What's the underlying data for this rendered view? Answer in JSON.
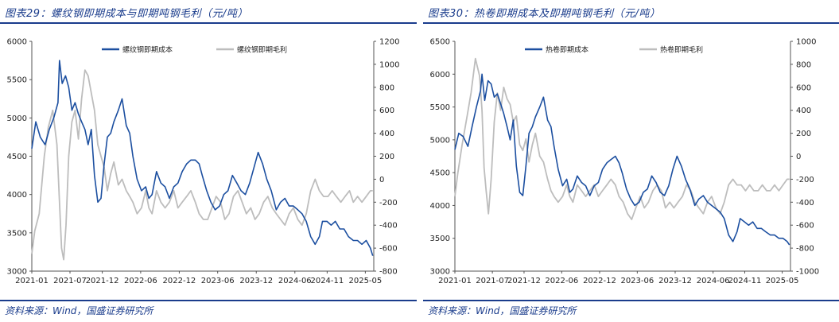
{
  "charts": [
    {
      "figure_title": "图表29：螺纹钢即期成本与即期吨钢毛利（元/吨）",
      "source": "资料来源：Wind，国盛证券研究所",
      "chart_data": {
        "type": "line",
        "x_ticks": [
          "2021-01",
          "2021-07",
          "2021-12",
          "2022-06",
          "2022-12",
          "2023-06",
          "2023-12",
          "2024-06",
          "2024-11",
          "2025-05"
        ],
        "x_range": [
          "2021-01-01",
          "2025-06-10"
        ],
        "left_axis": {
          "ylim": [
            3000,
            6000
          ],
          "ticks": [
            3000,
            3500,
            4000,
            4500,
            5000,
            5500,
            6000
          ]
        },
        "right_axis": {
          "ylim": [
            -800,
            1200
          ],
          "ticks": [
            -800,
            -600,
            -400,
            -200,
            0,
            200,
            400,
            600,
            800,
            1000,
            1200
          ]
        },
        "legend_position": "top",
        "series": [
          {
            "name": "螺纹钢即期成本",
            "axis": "left",
            "color": "#1c4fa0",
            "x": [
              "2021-01-01",
              "2021-01-20",
              "2021-02-10",
              "2021-03-05",
              "2021-03-25",
              "2021-04-15",
              "2021-05-05",
              "2021-05-12",
              "2021-05-25",
              "2021-06-10",
              "2021-06-25",
              "2021-07-10",
              "2021-07-25",
              "2021-08-10",
              "2021-08-25",
              "2021-09-10",
              "2021-09-25",
              "2021-10-10",
              "2021-10-25",
              "2021-11-10",
              "2021-11-25",
              "2021-12-10",
              "2021-12-25",
              "2022-01-10",
              "2022-01-25",
              "2022-02-15",
              "2022-03-05",
              "2022-03-25",
              "2022-04-10",
              "2022-04-25",
              "2022-05-15",
              "2022-06-05",
              "2022-06-25",
              "2022-07-10",
              "2022-07-25",
              "2022-08-15",
              "2022-09-05",
              "2022-09-25",
              "2022-10-15",
              "2022-11-05",
              "2022-11-25",
              "2022-12-15",
              "2023-01-05",
              "2023-01-25",
              "2023-02-15",
              "2023-03-05",
              "2023-03-20",
              "2023-04-10",
              "2023-04-30",
              "2023-05-20",
              "2023-06-10",
              "2023-06-30",
              "2023-07-20",
              "2023-08-10",
              "2023-08-31",
              "2023-09-20",
              "2023-10-10",
              "2023-10-31",
              "2023-11-20",
              "2023-12-10",
              "2023-12-31",
              "2024-01-20",
              "2024-02-10",
              "2024-03-05",
              "2024-03-25",
              "2024-04-15",
              "2024-05-05",
              "2024-05-25",
              "2024-06-15",
              "2024-07-05",
              "2024-07-25",
              "2024-08-15",
              "2024-09-05",
              "2024-09-25",
              "2024-10-10",
              "2024-10-31",
              "2024-11-20",
              "2024-12-10",
              "2024-12-31",
              "2025-01-20",
              "2025-02-10",
              "2025-03-05",
              "2025-03-25",
              "2025-04-15",
              "2025-05-05",
              "2025-05-25",
              "2025-06-05"
            ],
            "y": [
              4600,
              4950,
              4750,
              4650,
              4850,
              5000,
              5200,
              5750,
              5450,
              5550,
              5400,
              5100,
              5200,
              5050,
              4950,
              4850,
              4650,
              4850,
              4250,
              3900,
              3950,
              4400,
              4750,
              4800,
              4950,
              5100,
              5250,
              4900,
              4800,
              4500,
              4200,
              4050,
              4100,
              3950,
              4000,
              4300,
              4150,
              4100,
              3950,
              4100,
              4150,
              4300,
              4400,
              4450,
              4450,
              4400,
              4250,
              4050,
              3900,
              3800,
              3850,
              4000,
              4050,
              4250,
              4150,
              4050,
              4000,
              4150,
              4350,
              4550,
              4400,
              4200,
              4050,
              3800,
              3900,
              3950,
              3850,
              3850,
              3800,
              3750,
              3650,
              3450,
              3350,
              3450,
              3650,
              3650,
              3600,
              3650,
              3550,
              3550,
              3450,
              3400,
              3400,
              3350,
              3400,
              3300,
              3200
            ]
          },
          {
            "name": "螺纹钢即期毛利",
            "axis": "right",
            "color": "#bdbdbd",
            "x": [
              "2021-01-01",
              "2021-01-15",
              "2021-02-05",
              "2021-03-01",
              "2021-03-20",
              "2021-04-10",
              "2021-04-30",
              "2021-05-12",
              "2021-05-22",
              "2021-06-01",
              "2021-06-12",
              "2021-06-25",
              "2021-07-10",
              "2021-07-25",
              "2021-08-10",
              "2021-08-25",
              "2021-09-10",
              "2021-09-25",
              "2021-10-10",
              "2021-10-25",
              "2021-11-10",
              "2021-11-25",
              "2021-12-10",
              "2021-12-25",
              "2022-01-10",
              "2022-01-25",
              "2022-02-15",
              "2022-03-05",
              "2022-03-25",
              "2022-04-10",
              "2022-04-25",
              "2022-05-15",
              "2022-06-05",
              "2022-06-25",
              "2022-07-10",
              "2022-07-25",
              "2022-08-15",
              "2022-09-05",
              "2022-09-25",
              "2022-10-15",
              "2022-11-05",
              "2022-11-25",
              "2022-12-15",
              "2023-01-05",
              "2023-01-25",
              "2023-02-15",
              "2023-03-05",
              "2023-03-25",
              "2023-04-15",
              "2023-05-05",
              "2023-05-25",
              "2023-06-15",
              "2023-07-05",
              "2023-07-25",
              "2023-08-15",
              "2023-09-05",
              "2023-09-25",
              "2023-10-15",
              "2023-11-05",
              "2023-11-25",
              "2023-12-15",
              "2024-01-05",
              "2024-01-25",
              "2024-02-15",
              "2024-03-05",
              "2024-03-25",
              "2024-04-15",
              "2024-05-05",
              "2024-05-25",
              "2024-06-15",
              "2024-07-05",
              "2024-07-25",
              "2024-08-15",
              "2024-09-05",
              "2024-09-25",
              "2024-10-15",
              "2024-11-05",
              "2024-11-25",
              "2024-12-15",
              "2025-01-05",
              "2025-01-25",
              "2025-02-15",
              "2025-03-05",
              "2025-03-25",
              "2025-04-15",
              "2025-05-05",
              "2025-05-25",
              "2025-06-05"
            ],
            "y": [
              -650,
              -450,
              -300,
              200,
              450,
              600,
              300,
              -200,
              -600,
              -700,
              -400,
              200,
              500,
              600,
              350,
              700,
              950,
              900,
              750,
              600,
              300,
              200,
              100,
              -100,
              50,
              150,
              -50,
              0,
              -100,
              -150,
              -200,
              -300,
              -250,
              -100,
              -250,
              -300,
              -100,
              -200,
              -250,
              -200,
              -100,
              -250,
              -200,
              -150,
              -100,
              -200,
              -300,
              -350,
              -350,
              -250,
              -150,
              -200,
              -350,
              -300,
              -150,
              -100,
              -200,
              -300,
              -250,
              -350,
              -300,
              -200,
              -150,
              -250,
              -300,
              -350,
              -400,
              -300,
              -250,
              -350,
              -400,
              -300,
              -100,
              0,
              -100,
              -150,
              -150,
              -100,
              -150,
              -200,
              -150,
              -100,
              -200,
              -150,
              -200,
              -150,
              -100,
              -100
            ]
          }
        ]
      }
    },
    {
      "figure_title": "图表30：热卷即期成本及即期吨钢毛利（元/吨）",
      "source": "资料来源：Wind，国盛证券研究所",
      "chart_data": {
        "type": "line",
        "x_ticks": [
          "2021-01",
          "2021-07",
          "2021-12",
          "2022-06",
          "2022-12",
          "2023-06",
          "2023-12",
          "2024-06",
          "2024-11",
          "2025-05"
        ],
        "x_range": [
          "2021-01-01",
          "2025-06-10"
        ],
        "left_axis": {
          "ylim": [
            3000,
            6500
          ],
          "ticks": [
            3000,
            3500,
            4000,
            4500,
            5000,
            5500,
            6000,
            6500
          ]
        },
        "right_axis": {
          "ylim": [
            -1000,
            1000
          ],
          "ticks": [
            -1000,
            -800,
            -600,
            -400,
            -200,
            0,
            200,
            400,
            600,
            800,
            1000
          ]
        },
        "legend_position": "top",
        "series": [
          {
            "name": "热卷即期成本",
            "axis": "left",
            "color": "#1c4fa0",
            "x": [
              "2021-01-01",
              "2021-01-20",
              "2021-02-10",
              "2021-03-05",
              "2021-03-25",
              "2021-04-15",
              "2021-05-05",
              "2021-05-12",
              "2021-05-25",
              "2021-06-10",
              "2021-06-25",
              "2021-07-10",
              "2021-07-25",
              "2021-08-10",
              "2021-08-25",
              "2021-09-10",
              "2021-09-25",
              "2021-10-10",
              "2021-10-25",
              "2021-11-10",
              "2021-11-25",
              "2021-12-10",
              "2021-12-25",
              "2022-01-10",
              "2022-01-25",
              "2022-02-15",
              "2022-03-05",
              "2022-03-25",
              "2022-04-10",
              "2022-04-25",
              "2022-05-15",
              "2022-06-05",
              "2022-06-25",
              "2022-07-10",
              "2022-07-25",
              "2022-08-15",
              "2022-09-05",
              "2022-09-25",
              "2022-10-15",
              "2022-11-05",
              "2022-11-25",
              "2022-12-15",
              "2023-01-05",
              "2023-01-25",
              "2023-02-15",
              "2023-03-05",
              "2023-03-20",
              "2023-04-10",
              "2023-04-30",
              "2023-05-20",
              "2023-06-10",
              "2023-06-30",
              "2023-07-20",
              "2023-08-10",
              "2023-08-31",
              "2023-09-20",
              "2023-10-10",
              "2023-10-31",
              "2023-11-20",
              "2023-12-10",
              "2023-12-31",
              "2024-01-20",
              "2024-02-10",
              "2024-03-05",
              "2024-03-25",
              "2024-04-15",
              "2024-05-05",
              "2024-05-25",
              "2024-06-15",
              "2024-07-05",
              "2024-07-25",
              "2024-08-15",
              "2024-09-05",
              "2024-09-25",
              "2024-10-10",
              "2024-10-31",
              "2024-11-20",
              "2024-12-10",
              "2024-12-31",
              "2025-01-20",
              "2025-02-10",
              "2025-03-05",
              "2025-03-25",
              "2025-04-15",
              "2025-05-05",
              "2025-05-25",
              "2025-06-05"
            ],
            "y": [
              4850,
              5100,
              5050,
              4900,
              5200,
              5500,
              5750,
              6000,
              5600,
              5900,
              5850,
              5650,
              5700,
              5550,
              5400,
              5200,
              5000,
              5300,
              4600,
              4200,
              4150,
              4600,
              5100,
              5200,
              5350,
              5500,
              5650,
              5300,
              5200,
              4900,
              4550,
              4300,
              4400,
              4200,
              4250,
              4450,
              4350,
              4300,
              4150,
              4300,
              4350,
              4550,
              4650,
              4700,
              4750,
              4650,
              4500,
              4250,
              4100,
              4000,
              4050,
              4200,
              4250,
              4450,
              4350,
              4200,
              4150,
              4300,
              4550,
              4750,
              4600,
              4400,
              4250,
              4000,
              4100,
              4150,
              4050,
              4000,
              3950,
              3900,
              3800,
              3550,
              3450,
              3600,
              3800,
              3750,
              3700,
              3750,
              3650,
              3650,
              3600,
              3550,
              3550,
              3500,
              3500,
              3450,
              3400
            ]
          },
          {
            "name": "热卷即期毛利",
            "axis": "right",
            "color": "#bdbdbd",
            "x": [
              "2021-01-01",
              "2021-01-15",
              "2021-02-05",
              "2021-03-01",
              "2021-03-20",
              "2021-04-10",
              "2021-04-30",
              "2021-05-12",
              "2021-05-22",
              "2021-06-01",
              "2021-06-12",
              "2021-06-25",
              "2021-07-10",
              "2021-07-25",
              "2021-08-10",
              "2021-08-25",
              "2021-09-10",
              "2021-09-25",
              "2021-10-10",
              "2021-10-25",
              "2021-11-10",
              "2021-11-25",
              "2021-12-10",
              "2021-12-25",
              "2022-01-10",
              "2022-01-25",
              "2022-02-15",
              "2022-03-05",
              "2022-03-25",
              "2022-04-10",
              "2022-04-25",
              "2022-05-15",
              "2022-06-05",
              "2022-06-25",
              "2022-07-10",
              "2022-07-25",
              "2022-08-15",
              "2022-09-05",
              "2022-09-25",
              "2022-10-15",
              "2022-11-05",
              "2022-11-25",
              "2022-12-15",
              "2023-01-05",
              "2023-01-25",
              "2023-02-15",
              "2023-03-05",
              "2023-03-25",
              "2023-04-15",
              "2023-05-05",
              "2023-05-25",
              "2023-06-15",
              "2023-07-05",
              "2023-07-25",
              "2023-08-15",
              "2023-09-05",
              "2023-09-25",
              "2023-10-15",
              "2023-11-05",
              "2023-11-25",
              "2023-12-15",
              "2024-01-05",
              "2024-01-25",
              "2024-02-15",
              "2024-03-05",
              "2024-03-25",
              "2024-04-15",
              "2024-05-05",
              "2024-05-25",
              "2024-06-15",
              "2024-07-05",
              "2024-07-25",
              "2024-08-15",
              "2024-09-05",
              "2024-09-25",
              "2024-10-15",
              "2024-11-05",
              "2024-11-25",
              "2024-12-15",
              "2025-01-05",
              "2025-01-25",
              "2025-02-15",
              "2025-03-05",
              "2025-03-25",
              "2025-04-15",
              "2025-05-05",
              "2025-05-25",
              "2025-06-05"
            ],
            "y": [
              -350,
              -150,
              100,
              350,
              550,
              850,
              700,
              400,
              -100,
              -300,
              -500,
              -200,
              300,
              550,
              400,
              600,
              500,
              450,
              300,
              350,
              100,
              50,
              150,
              -50,
              100,
              200,
              0,
              -50,
              -200,
              -300,
              -350,
              -400,
              -350,
              -250,
              -350,
              -400,
              -250,
              -300,
              -350,
              -300,
              -250,
              -350,
              -300,
              -250,
              -200,
              -250,
              -350,
              -400,
              -500,
              -550,
              -450,
              -350,
              -450,
              -400,
              -300,
              -250,
              -300,
              -450,
              -400,
              -450,
              -400,
              -350,
              -250,
              -300,
              -400,
              -450,
              -500,
              -400,
              -350,
              -450,
              -500,
              -400,
              -250,
              -200,
              -250,
              -250,
              -300,
              -250,
              -300,
              -300,
              -250,
              -300,
              -300,
              -250,
              -300,
              -250,
              -200,
              -200
            ]
          }
        ]
      }
    }
  ]
}
